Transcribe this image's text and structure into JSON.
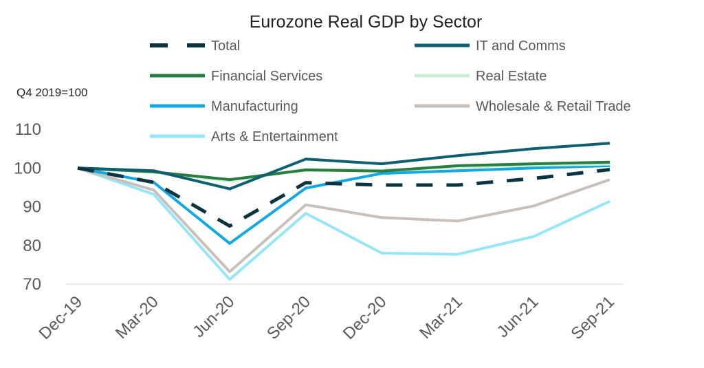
{
  "chart_data": {
    "type": "line",
    "title": "Eurozone Real GDP  by Sector",
    "ylabel": "Q4 2019=100",
    "xlabel": "",
    "categories": [
      "Dec-19",
      "Mar-20",
      "Jun-20",
      "Sep-20",
      "Dec-20",
      "Mar-21",
      "Jun-21",
      "Sep-21"
    ],
    "ylim": [
      70,
      110
    ],
    "yticks": [
      70,
      80,
      90,
      100,
      110
    ],
    "grid": false,
    "legend_position": "top",
    "series": [
      {
        "name": "Total",
        "color": "#0b3440",
        "dashed": true,
        "values": [
          100,
          96.3,
          85,
          96.2,
          95.6,
          95.6,
          97.3,
          99.6
        ]
      },
      {
        "name": "IT and Comms",
        "color": "#0d5f71",
        "dashed": false,
        "values": [
          100,
          99.3,
          94.6,
          102.3,
          101.1,
          103.2,
          105.0,
          106.4
        ]
      },
      {
        "name": "Financial Services",
        "color": "#2a7d40",
        "dashed": false,
        "values": [
          100,
          99.0,
          97.0,
          99.5,
          99.2,
          100.6,
          101.1,
          101.5
        ]
      },
      {
        "name": "Real Estate",
        "color": "#c8eed5",
        "dashed": false,
        "values": [
          100,
          98.9,
          96.6,
          99.7,
          99.4,
          100.2,
          100.7,
          101.0
        ]
      },
      {
        "name": "Manufacturing",
        "color": "#12a8e0",
        "dashed": false,
        "values": [
          100,
          96.3,
          80.5,
          94.8,
          98.6,
          99.3,
          100.0,
          100.6
        ]
      },
      {
        "name": "Wholesale & Retail Trade",
        "color": "#c9c0ba",
        "dashed": false,
        "values": [
          100,
          94.3,
          73.2,
          90.5,
          87.2,
          86.3,
          90.2,
          97.0
        ]
      },
      {
        "name": "Arts & Entertainment",
        "color": "#97e6f7",
        "dashed": false,
        "values": [
          100,
          93.2,
          71.2,
          88.3,
          78.0,
          77.7,
          82.3,
          91.4
        ]
      }
    ]
  }
}
